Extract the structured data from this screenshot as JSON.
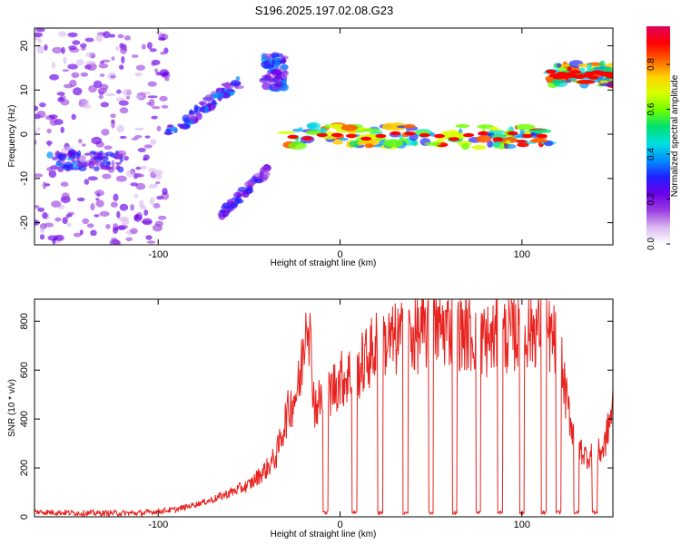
{
  "title": "S196.2025.197.02.08.G23",
  "chart_data": [
    {
      "type": "heatmap",
      "xlabel": "Height of straight line (km)",
      "ylabel": "Frequency (Hz)",
      "xlim": [
        -168,
        150
      ],
      "ylim": [
        -25,
        24
      ],
      "xticks": [
        -100,
        0,
        100
      ],
      "yticks": [
        -20,
        -10,
        0,
        10,
        20
      ],
      "colorbar": {
        "label": "Normalized spectral amplitude",
        "range": [
          0.0,
          0.97
        ],
        "ticks": [
          0.0,
          0.2,
          0.4,
          0.6,
          0.8
        ],
        "colors": [
          "#ffffff",
          "#d8b8f0",
          "#9a3de0",
          "#6a00e8",
          "#2020ff",
          "#0090ff",
          "#00e0e0",
          "#00e070",
          "#70ff00",
          "#d8ff00",
          "#ffd000",
          "#ff6000",
          "#ff0000",
          "#e00060"
        ]
      },
      "features": [
        {
          "x": [
            -168,
            -95
          ],
          "y": [
            -25,
            24
          ],
          "amplitude": 0.25
        },
        {
          "x": [
            -160,
            -120
          ],
          "y": [
            -8,
            -4
          ],
          "amplitude": 0.35
        },
        {
          "x": [
            -95,
            -55
          ],
          "y": [
            0,
            12
          ],
          "amplitude": 0.4
        },
        {
          "x": [
            -65,
            -40
          ],
          "y": [
            -18,
            -8
          ],
          "amplitude": 0.3
        },
        {
          "x": [
            -42,
            -30
          ],
          "y": [
            10,
            18
          ],
          "amplitude": 0.4
        },
        {
          "x": [
            -30,
            115
          ],
          "y": [
            -3,
            2
          ],
          "amplitude": 0.9
        },
        {
          "x": [
            115,
            150
          ],
          "y": [
            11,
            16
          ],
          "amplitude": 0.9
        }
      ]
    },
    {
      "type": "line",
      "xlabel": "Height of straight line (km)",
      "ylabel": "SNR (10 * v/v)",
      "xlim": [
        -168,
        150
      ],
      "ylim": [
        0,
        890
      ],
      "xticks": [
        -100,
        0,
        100
      ],
      "yticks": [
        0,
        200,
        400,
        600,
        800
      ],
      "color": "#e8231f",
      "series": [
        {
          "x": [
            -168,
            -140,
            -110,
            -90,
            -70,
            -50,
            -40,
            -35,
            -30,
            -22,
            -18,
            -14,
            -10,
            -5,
            0,
            10,
            20,
            30,
            40,
            50,
            60,
            70,
            80,
            90,
            100,
            110,
            120,
            125,
            130,
            135,
            140,
            145,
            150
          ],
          "y": [
            20,
            15,
            15,
            30,
            70,
            130,
            200,
            250,
            400,
            550,
            890,
            450,
            480,
            520,
            560,
            600,
            700,
            720,
            740,
            760,
            780,
            750,
            720,
            740,
            760,
            780,
            700,
            450,
            300,
            250,
            250,
            280,
            450
          ]
        }
      ],
      "dropouts_x": [
        -8,
        8,
        22,
        36,
        50,
        63,
        76,
        88,
        100,
        112,
        120,
        130,
        140
      ]
    }
  ]
}
